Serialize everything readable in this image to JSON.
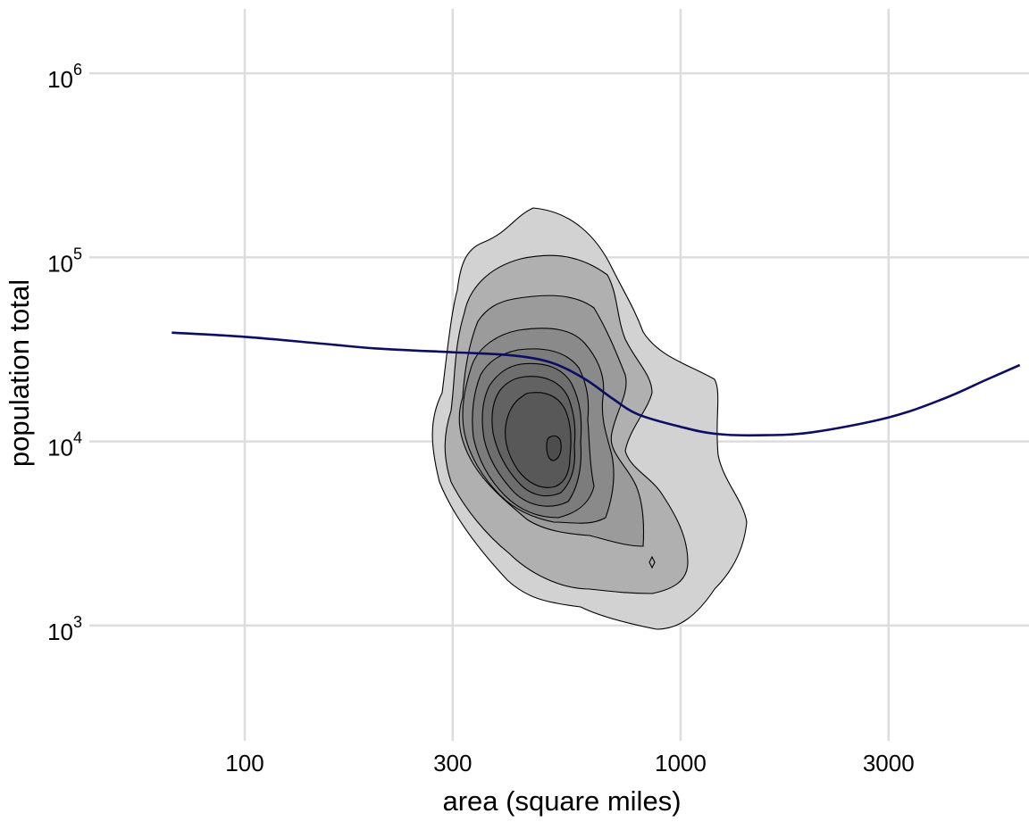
{
  "chart_data": {
    "type": "contour-density",
    "xlabel": "area (square miles)",
    "ylabel": "population total",
    "x_scale": "log10",
    "y_scale": "log10",
    "xlim": [
      44,
      6300
    ],
    "ylim": [
      250,
      2500000
    ],
    "x_ticks": [
      {
        "value": 100,
        "label": "100"
      },
      {
        "value": 300,
        "label": "300"
      },
      {
        "value": 1000,
        "label": "1000"
      },
      {
        "value": 3000,
        "label": "3000"
      }
    ],
    "y_ticks": [
      {
        "value": 1000,
        "base": "10",
        "exp": "3"
      },
      {
        "value": 10000,
        "base": "10",
        "exp": "4"
      },
      {
        "value": 100000,
        "base": "10",
        "exp": "5"
      },
      {
        "value": 1000000,
        "base": "10",
        "exp": "6"
      }
    ],
    "grid": true,
    "legend": "none",
    "contour_levels": 9,
    "contour_fills": [
      "#d2d2d2",
      "#b0b0b0",
      "#9b9b9b",
      "#8a8a8a",
      "#7c7c7c",
      "#6e6e6e",
      "#626262",
      "#585858",
      "#4d4d4d"
    ],
    "density_peak": {
      "area": 550,
      "population": 17000
    },
    "trend_color": "#0d0d63",
    "trend": [
      [
        68,
        39000
      ],
      [
        100,
        37000
      ],
      [
        150,
        34000
      ],
      [
        200,
        32000
      ],
      [
        300,
        30500
      ],
      [
        400,
        29500
      ],
      [
        500,
        27000
      ],
      [
        600,
        22000
      ],
      [
        700,
        17000
      ],
      [
        800,
        14000
      ],
      [
        1000,
        12000
      ],
      [
        1200,
        11000
      ],
      [
        1500,
        10800
      ],
      [
        2000,
        11200
      ],
      [
        3000,
        13500
      ],
      [
        4000,
        17000
      ],
      [
        5000,
        21500
      ],
      [
        6000,
        26000
      ]
    ]
  }
}
